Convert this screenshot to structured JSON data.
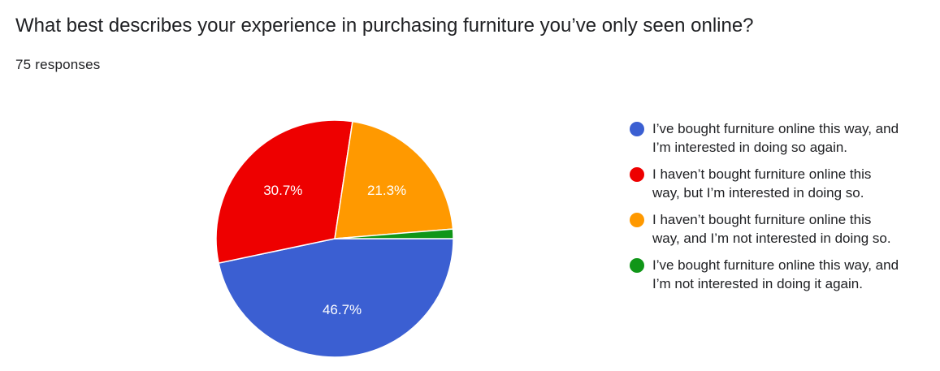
{
  "header": {
    "title": "What best describes your experience in purchasing furniture you’ve only seen online?",
    "responses": "75 responses"
  },
  "chart_data": {
    "type": "pie",
    "total_responses": 75,
    "slices": [
      {
        "label": "I’ve bought furniture online this way, and I’m interested in doing so again.",
        "value": 46.7,
        "display": "46.7%",
        "color": "#3b5fd2"
      },
      {
        "label": "I haven’t bought furniture online this way, but I’m interested in doing so.",
        "value": 30.7,
        "display": "30.7%",
        "color": "#ee0000"
      },
      {
        "label": "I haven’t bought furniture online this way, and I’m not interested in doing so.",
        "value": 21.3,
        "display": "21.3%",
        "color": "#ff9900"
      },
      {
        "label": "I’ve bought furniture online this way, and I’m not interested in doing it again.",
        "value": 1.3,
        "display": "",
        "color": "#109618"
      }
    ],
    "legend": {
      "placement": "right",
      "items": [
        {
          "lines": [
            "I’ve bought furniture online this way, and",
            "I’m interested in doing so again."
          ],
          "color": "#3b5fd2"
        },
        {
          "lines": [
            "I haven’t bought furniture online this",
            "way, but I’m interested in doing so."
          ],
          "color": "#ee0000"
        },
        {
          "lines": [
            "I haven’t bought furniture online this",
            "way, and I’m not interested in doing so."
          ],
          "color": "#ff9900"
        },
        {
          "lines": [
            "I’ve bought furniture online this way, and",
            "I’m not interested in doing it again."
          ],
          "color": "#109618"
        }
      ]
    }
  }
}
